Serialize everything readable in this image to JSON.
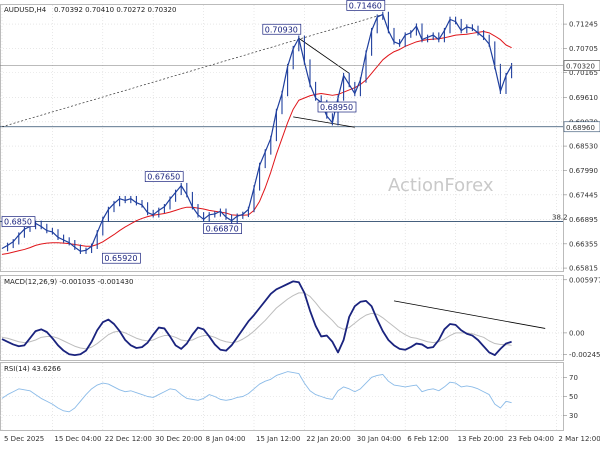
{
  "header": {
    "symbol": "AUDUSD,H4",
    "ohlc": "0.70392 0.70410 0.70272 0.70320"
  },
  "watermark": "ActionForex",
  "colors": {
    "price": "#1f3f9e",
    "ma": "#e0161b",
    "level_line": "#2b4a6b",
    "trendline": "#000000",
    "macd": "#1a237e",
    "signal": "#bdbdbd",
    "rsi": "#8bbbe8",
    "grid": "#d9d9d9"
  },
  "chart_data": [
    {
      "type": "line",
      "title": "",
      "series": [
        {
          "name": "",
          "values": [
            0.6625,
            0.6632,
            0.664,
            0.6655,
            0.6668,
            0.6674,
            0.6681,
            0.6674,
            0.6665,
            0.6662,
            0.665,
            0.6644,
            0.6638,
            0.6628,
            0.6619,
            0.6621,
            0.663,
            0.666,
            0.669,
            0.6712,
            0.6725,
            0.6736,
            0.6732,
            0.6736,
            0.6727,
            0.6722,
            0.6705,
            0.67,
            0.671,
            0.6718,
            0.6735,
            0.675,
            0.6765,
            0.6745,
            0.6718,
            0.67,
            0.669,
            0.67,
            0.6702,
            0.6708,
            0.6695,
            0.6687,
            0.6697,
            0.6701,
            0.6712,
            0.676,
            0.681,
            0.684,
            0.687,
            0.693,
            0.697,
            0.703,
            0.707,
            0.7093,
            0.704,
            0.699,
            0.696,
            0.695,
            0.692,
            0.6905,
            0.696,
            0.701,
            0.699,
            0.697,
            0.7,
            0.706,
            0.711,
            0.714,
            0.7146,
            0.711,
            0.7085,
            0.708,
            0.71,
            0.7105,
            0.712,
            0.709,
            0.7095,
            0.71,
            0.709,
            0.711,
            0.7135,
            0.713,
            0.711,
            0.7118,
            0.7115,
            0.7105,
            0.7095,
            0.708,
            0.703,
            0.6975,
            0.701,
            0.7032
          ]
        },
        {
          "name": "",
          "values": [
            0.6612,
            0.6614,
            0.6617,
            0.662,
            0.6623,
            0.6627,
            0.6632,
            0.6635,
            0.6637,
            0.6638,
            0.6638,
            0.6637,
            0.6636,
            0.6634,
            0.6632,
            0.663,
            0.663,
            0.6634,
            0.664,
            0.6648,
            0.6656,
            0.6665,
            0.6673,
            0.668,
            0.6687,
            0.6692,
            0.6696,
            0.6699,
            0.6701,
            0.6703,
            0.6706,
            0.671,
            0.6714,
            0.6717,
            0.6717,
            0.6715,
            0.6713,
            0.671,
            0.6708,
            0.6706,
            0.6704,
            0.67,
            0.6699,
            0.6699,
            0.67,
            0.671,
            0.673,
            0.676,
            0.6795,
            0.6835,
            0.687,
            0.6905,
            0.6935,
            0.6955,
            0.696,
            0.6965,
            0.6968,
            0.697,
            0.6968,
            0.6966,
            0.6968,
            0.6973,
            0.6978,
            0.6983,
            0.699,
            0.7,
            0.7015,
            0.703,
            0.7045,
            0.7055,
            0.7063,
            0.7068,
            0.7075,
            0.708,
            0.7085,
            0.7088,
            0.709,
            0.7091,
            0.7092,
            0.7094,
            0.7097,
            0.71,
            0.7101,
            0.7102,
            0.7104,
            0.7106,
            0.7108,
            0.7105,
            0.7098,
            0.709,
            0.7078,
            0.7072
          ]
        }
      ],
      "point_labels": [
        {
          "text": "0.71460",
          "i": 68
        },
        {
          "text": "0.70930",
          "i": 53
        },
        {
          "text": "0.68950",
          "i": 60
        },
        {
          "text": "0.67650",
          "i": 32
        },
        {
          "text": "0.66870",
          "i": 41
        },
        {
          "text": "0.65920",
          "i": 14
        },
        {
          "text": "0.6850",
          "i": 0
        }
      ],
      "level_lines": [
        {
          "value": 0.6896,
          "label": "0.68960"
        },
        {
          "value": 0.6685,
          "label": "38.2"
        }
      ],
      "current_price": {
        "value": 0.7032,
        "label": "0.70320"
      },
      "ylim": [
        0.6575,
        0.7167
      ],
      "yticks": [
        "0.71245",
        "0.70705",
        "0.70165",
        "0.69610",
        "0.69070",
        "0.68530",
        "0.67990",
        "0.67445",
        "0.66895",
        "0.66355",
        "0.65815"
      ],
      "ytick_values": [
        0.71245,
        0.70705,
        0.70165,
        0.6961,
        0.6907,
        0.6853,
        0.6799,
        0.67445,
        0.66895,
        0.66355,
        0.65815
      ]
    },
    {
      "type": "line",
      "title": "",
      "label": "MACD(12,26,9) -0.001035 -0.001430",
      "series": [
        {
          "name": "",
          "values": [
            -0.0007,
            -0.001,
            -0.0013,
            -0.0015,
            -0.0014,
            -0.0006,
            0.0002,
            0.0004,
            0.0001,
            -0.0006,
            -0.0014,
            -0.002,
            -0.0024,
            -0.0025,
            -0.0024,
            -0.002,
            -0.001,
            0.0003,
            0.0012,
            0.0015,
            0.001,
            0.0002,
            -0.0008,
            -0.0014,
            -0.0017,
            -0.0016,
            -0.0011,
            -0.0002,
            0.0006,
            0.0005,
            -0.0004,
            -0.0014,
            -0.0018,
            -0.0012,
            -0.0002,
            0.0006,
            0.0004,
            -0.0004,
            -0.0013,
            -0.0019,
            -0.002,
            -0.0014,
            -0.0005,
            0.0004,
            0.0013,
            0.002,
            0.0028,
            0.0036,
            0.0044,
            0.0049,
            0.0052,
            0.0055,
            0.0058,
            0.0057,
            0.0045,
            0.0025,
            0.0008,
            -0.0004,
            -0.0003,
            -0.001,
            -0.0022,
            -0.0008,
            0.0018,
            0.003,
            0.0035,
            0.0036,
            0.003,
            0.0015,
            0.0002,
            -0.0008,
            -0.0014,
            -0.0018,
            -0.0019,
            -0.0016,
            -0.0012,
            -0.0013,
            -0.0017,
            -0.0016,
            -0.0008,
            0.0004,
            0.001,
            0.0009,
            0.0003,
            -0.0001,
            -0.0003,
            -0.0008,
            -0.0015,
            -0.0022,
            -0.0025,
            -0.0018,
            -0.0012,
            -0.001
          ]
        },
        {
          "name": "",
          "values": [
            -0.0005,
            -0.0006,
            -0.0008,
            -0.001,
            -0.0011,
            -0.001,
            -0.0008,
            -0.0005,
            -0.0004,
            -0.0004,
            -0.0006,
            -0.0009,
            -0.0012,
            -0.0015,
            -0.0017,
            -0.0018,
            -0.0016,
            -0.0012,
            -0.0007,
            -0.0002,
            0.0001,
            0.0002,
            0.0,
            -0.0003,
            -0.0006,
            -0.0008,
            -0.0009,
            -0.0008,
            -0.0005,
            -0.0003,
            -0.0003,
            -0.0005,
            -0.0008,
            -0.0009,
            -0.0008,
            -0.0005,
            -0.0003,
            -0.0003,
            -0.0005,
            -0.0008,
            -0.001,
            -0.0011,
            -0.001,
            -0.0007,
            -0.0003,
            0.0002,
            0.0008,
            0.0014,
            0.0021,
            0.0028,
            0.0033,
            0.0038,
            0.0042,
            0.0045,
            0.0045,
            0.0041,
            0.0034,
            0.0026,
            0.002,
            0.0014,
            0.0007,
            0.0004,
            0.0006,
            0.0011,
            0.0016,
            0.002,
            0.0022,
            0.0021,
            0.0017,
            0.0012,
            0.0007,
            0.0002,
            -0.0002,
            -0.0005,
            -0.0006,
            -0.0008,
            -0.001,
            -0.0011,
            -0.001,
            -0.0007,
            -0.0003,
            -0.0,
            0.0,
            -0.0,
            -0.0001,
            -0.0003,
            -0.0005,
            -0.0009,
            -0.0012,
            -0.0013,
            -0.0013,
            -0.0014
          ]
        }
      ],
      "ylim": [
        -0.00305,
        0.0064
      ],
      "yticks": [
        "0.005977",
        "0.00",
        "-0.002451"
      ],
      "ytick_values": [
        0.005977,
        0.0,
        -0.002451
      ]
    },
    {
      "type": "line",
      "title": "",
      "label": "RSI(14) 43.6266",
      "series": [
        {
          "name": "",
          "values": [
            48,
            52,
            55,
            58,
            57,
            56,
            52,
            48,
            45,
            42,
            38,
            35,
            34,
            38,
            45,
            52,
            58,
            62,
            64,
            63,
            60,
            57,
            55,
            56,
            54,
            52,
            50,
            49,
            52,
            55,
            58,
            57,
            52,
            48,
            47,
            46,
            48,
            52,
            50,
            47,
            46,
            47,
            49,
            50,
            53,
            58,
            63,
            66,
            68,
            72,
            74,
            76,
            75,
            74,
            64,
            56,
            52,
            50,
            48,
            47,
            56,
            60,
            58,
            55,
            58,
            64,
            70,
            72,
            73,
            66,
            62,
            61,
            60,
            61,
            62,
            55,
            57,
            58,
            56,
            60,
            65,
            64,
            60,
            61,
            60,
            58,
            55,
            52,
            42,
            38,
            45,
            43.6
          ]
        }
      ],
      "ylim": [
        15,
        85
      ],
      "yticks": [
        "70",
        "50",
        "30"
      ],
      "ytick_values": [
        70,
        50,
        30
      ]
    }
  ],
  "xaxis": {
    "ticks": [
      "5 Dec 2025",
      "15 Dec 04:00",
      "22 Dec 12:00",
      "30 Dec 20:00",
      "8 Jan 04:00",
      "15 Jan 12:00",
      "22 Jan 20:00",
      "30 Jan 04:00",
      "6 Feb 12:00",
      "13 Feb 20:00",
      "23 Feb 04:00",
      "2 Mar 12:00"
    ],
    "tick_index": [
      0,
      9,
      18,
      27,
      36,
      45,
      54,
      63,
      72,
      81,
      90,
      99
    ]
  }
}
